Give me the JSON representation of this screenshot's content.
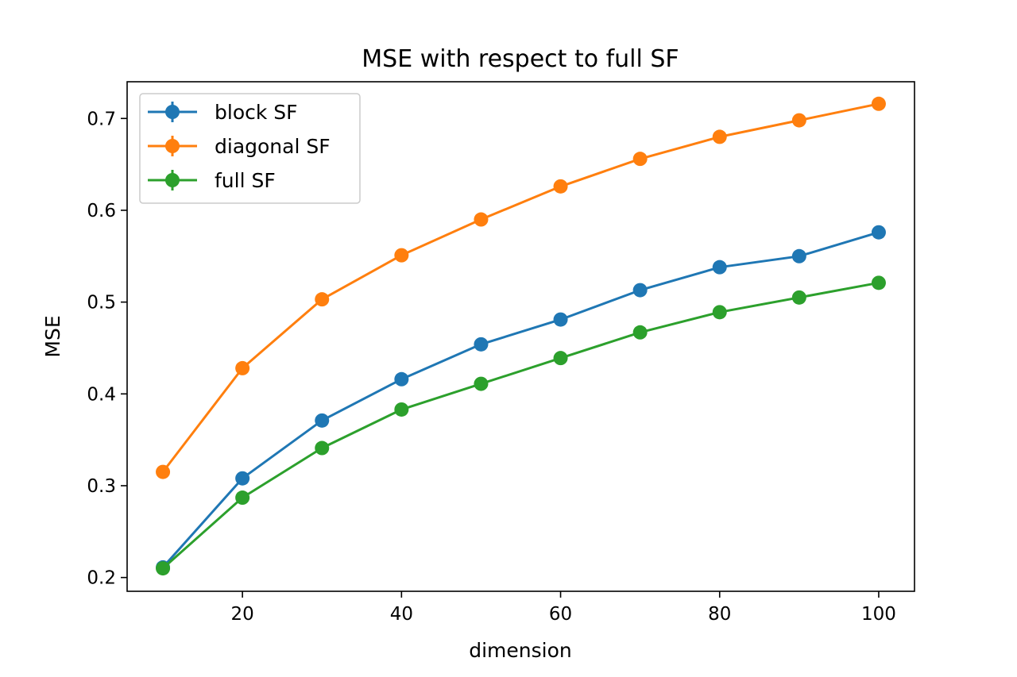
{
  "chart_data": {
    "type": "line",
    "title": "MSE with respect to full SF",
    "xlabel": "dimension",
    "ylabel": "MSE",
    "xlim": [
      5.5,
      104.5
    ],
    "ylim": [
      0.185,
      0.74
    ],
    "xticks": [
      20,
      40,
      60,
      80,
      100
    ],
    "xtick_labels": [
      "20",
      "40",
      "60",
      "80",
      "100"
    ],
    "yticks": [
      0.2,
      0.3,
      0.4,
      0.5,
      0.6,
      0.7
    ],
    "ytick_labels": [
      "0.2",
      "0.3",
      "0.4",
      "0.5",
      "0.6",
      "0.7"
    ],
    "grid": false,
    "legend_position": "upper-left",
    "x": [
      10,
      20,
      30,
      40,
      50,
      60,
      70,
      80,
      90,
      100
    ],
    "series": [
      {
        "name": "block SF",
        "color": "#1f77b4",
        "values": [
          0.211,
          0.308,
          0.371,
          0.416,
          0.454,
          0.481,
          0.513,
          0.538,
          0.55,
          0.576
        ]
      },
      {
        "name": "diagonal SF",
        "color": "#ff7f0e",
        "values": [
          0.315,
          0.428,
          0.503,
          0.551,
          0.59,
          0.626,
          0.656,
          0.68,
          0.698,
          0.716
        ]
      },
      {
        "name": "full SF",
        "color": "#2ca02c",
        "values": [
          0.21,
          0.287,
          0.341,
          0.383,
          0.411,
          0.439,
          0.467,
          0.489,
          0.505,
          0.521
        ]
      }
    ]
  }
}
